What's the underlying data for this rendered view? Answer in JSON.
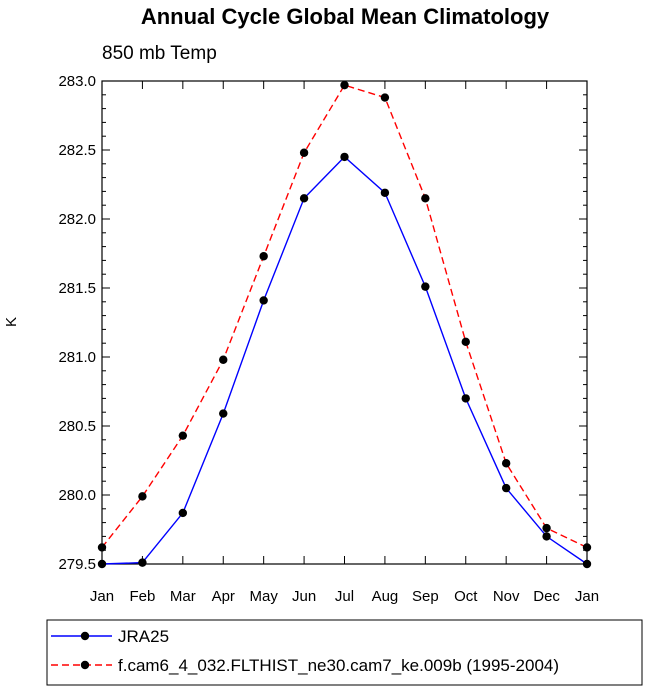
{
  "chart_data": {
    "type": "line",
    "title": "Annual Cycle Global Mean Climatology",
    "subtitle": "850 mb Temp",
    "xlabel": "",
    "ylabel": "K",
    "categories": [
      "Jan",
      "Feb",
      "Mar",
      "Apr",
      "May",
      "Jun",
      "Jul",
      "Aug",
      "Sep",
      "Oct",
      "Nov",
      "Dec",
      "Jan"
    ],
    "ylim": [
      279.5,
      283.0
    ],
    "yticks": [
      "279.5",
      "280.0",
      "280.5",
      "281.0",
      "281.5",
      "282.0",
      "282.5",
      "283.0"
    ],
    "grid": false,
    "legend_position": "bottom",
    "series": [
      {
        "name": "JRA25",
        "color": "#0000ff",
        "dash": "solid",
        "marker": "circle",
        "values": [
          279.5,
          279.51,
          279.87,
          280.59,
          281.41,
          282.15,
          282.45,
          282.19,
          281.51,
          280.7,
          280.05,
          279.7,
          279.5
        ]
      },
      {
        "name": "f.cam6_4_032.FLTHIST_ne30.cam7_ke.009b (1995-2004)",
        "color": "#ff0000",
        "dash": "dashed",
        "marker": "circle",
        "values": [
          279.62,
          279.99,
          280.43,
          280.98,
          281.73,
          282.48,
          282.97,
          282.88,
          282.15,
          281.11,
          280.23,
          279.76,
          279.62
        ]
      }
    ]
  }
}
